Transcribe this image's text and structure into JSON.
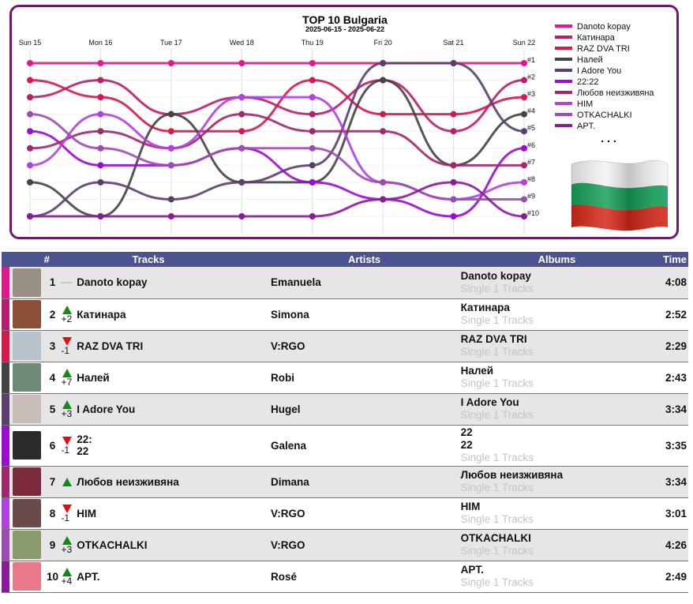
{
  "chart_data": {
    "type": "line",
    "title": "TOP 10 Bulgaria",
    "subtitle": "2025-06-15 - 2025-06-22",
    "x": [
      "Sun 15",
      "Mon 16",
      "Tue 17",
      "Wed 18",
      "Thu 19",
      "Fri 20",
      "Sat 21",
      "Sun 22"
    ],
    "rank_labels": [
      "#1",
      "#2",
      "#3",
      "#4",
      "#5",
      "#6",
      "#7",
      "#8",
      "#9",
      "#10"
    ],
    "ylim": [
      1,
      10
    ],
    "y_inverted": true,
    "legend_position": "right",
    "legend_more": ". . .",
    "series": [
      {
        "name": "Danoto kopay",
        "color": "#e0198c",
        "ranks": [
          1,
          1,
          1,
          1,
          1,
          1,
          1,
          1
        ]
      },
      {
        "name": "Катинара",
        "color": "#b81e6e",
        "ranks": [
          3,
          2,
          4,
          3,
          4,
          2,
          5,
          2
        ]
      },
      {
        "name": "RAZ DVA TRI",
        "color": "#d41a4a",
        "ranks": [
          2,
          3,
          5,
          5,
          2,
          4,
          4,
          3
        ]
      },
      {
        "name": "Налей",
        "color": "#444444",
        "ranks": [
          8,
          10,
          4,
          8,
          8,
          2,
          7,
          4
        ]
      },
      {
        "name": "I Adore You",
        "color": "#5a3f6e",
        "ranks": [
          10,
          8,
          9,
          8,
          7,
          1,
          1,
          5
        ]
      },
      {
        "name": "22:22",
        "color": "#9a0cd0",
        "ranks": [
          5,
          7,
          7,
          6,
          8,
          9,
          10,
          6
        ]
      },
      {
        "name": "Любов неизживяна",
        "color": "#a0286e",
        "ranks": [
          6,
          5,
          6,
          4,
          5,
          5,
          7,
          7
        ]
      },
      {
        "name": "HIM",
        "color": "#b040e0",
        "ranks": [
          7,
          4,
          6,
          3,
          3,
          8,
          9,
          8
        ]
      },
      {
        "name": "OTKACHALKI",
        "color": "#9c4cb0",
        "ranks": [
          4,
          6,
          7,
          6,
          6,
          8,
          9,
          9
        ]
      },
      {
        "name": "APT.",
        "color": "#8d1a9e",
        "ranks": [
          10,
          10,
          10,
          10,
          10,
          9,
          8,
          10
        ]
      }
    ]
  },
  "table": {
    "headers": {
      "num": "#",
      "tracks": "Tracks",
      "artists": "Artists",
      "albums": "Albums",
      "time": "Time"
    },
    "rows": [
      {
        "pos": "1",
        "move": "same",
        "change": "",
        "title": "Danoto kopay",
        "artist": "Emanuela",
        "album": "Danoto kopay",
        "album_sub": "Single 1 Tracks",
        "time": "4:08",
        "accent": "#e0198c",
        "cover": "#9a8f84"
      },
      {
        "pos": "2",
        "move": "up",
        "change": "+2",
        "title": "Катинара",
        "artist": "Simona",
        "album": "Катинара",
        "album_sub": "Single 1 Tracks",
        "time": "2:52",
        "accent": "#b81e6e",
        "cover": "#8a4f36"
      },
      {
        "pos": "3",
        "move": "down",
        "change": "-1",
        "title": "RAZ DVA TRI",
        "artist": "V:RGO",
        "album": "RAZ DVA TRI",
        "album_sub": "Single 1 Tracks",
        "time": "2:29",
        "accent": "#d41a4a",
        "cover": "#b9c3cc"
      },
      {
        "pos": "4",
        "move": "up",
        "change": "+7",
        "title": "Налей",
        "artist": "Robi",
        "album": "Налей",
        "album_sub": "Single 1 Tracks",
        "time": "2:43",
        "accent": "#444444",
        "cover": "#6f8a76"
      },
      {
        "pos": "5",
        "move": "up",
        "change": "+3",
        "title": "I Adore You",
        "artist": "Hugel",
        "album": "I Adore You",
        "album_sub": "Single 1 Tracks",
        "time": "3:34",
        "accent": "#5a3f6e",
        "cover": "#c9bfb8"
      },
      {
        "pos": "6",
        "move": "down",
        "change": "-1",
        "title": "22:",
        "title2": "22",
        "artist": "Galena",
        "album": "22",
        "album2": "22",
        "album_sub": "Single 1 Tracks",
        "time": "3:35",
        "accent": "#9a0cd0",
        "cover": "#2a2a2a"
      },
      {
        "pos": "7",
        "move": "up",
        "change": "",
        "title": "Любов неизживяна",
        "artist": "Dimana",
        "album": "Любов неизживяна",
        "album_sub": "Single 1 Tracks",
        "time": "3:34",
        "accent": "#a0286e",
        "cover": "#7a2a3a"
      },
      {
        "pos": "8",
        "move": "down",
        "change": "-1",
        "title": "HIM",
        "artist": "V:RGO",
        "album": "HIM",
        "album_sub": "Single 1 Tracks",
        "time": "3:01",
        "accent": "#b040e0",
        "cover": "#6b4a4a"
      },
      {
        "pos": "9",
        "move": "up",
        "change": "+3",
        "title": "OTKACHALKI",
        "artist": "V:RGO",
        "album": "OTKACHALKI",
        "album_sub": "Single 1 Tracks",
        "time": "4:26",
        "accent": "#9c4cb0",
        "cover": "#8b9a6a"
      },
      {
        "pos": "10",
        "move": "up",
        "change": "+4",
        "title": "APT.",
        "artist": "Rosé",
        "album": "APT.",
        "album_sub": "Single 1 Tracks",
        "time": "2:49",
        "accent": "#8d1a9e",
        "cover": "#e8788a"
      }
    ]
  }
}
